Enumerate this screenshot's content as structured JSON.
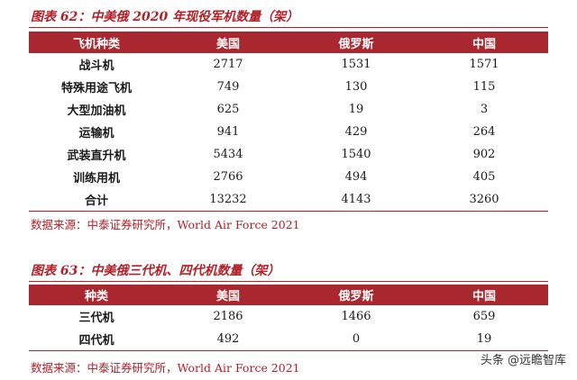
{
  "table62": {
    "title": "图表 62：中美俄 2020 年现役军机数量（架）",
    "headers": [
      "飞机种类",
      "美国",
      "俄罗斯",
      "中国"
    ],
    "rows": [
      [
        "战斗机",
        "2717",
        "1531",
        "1571"
      ],
      [
        "特殊用途飞机",
        "749",
        "130",
        "115"
      ],
      [
        "大型加油机",
        "625",
        "19",
        "3"
      ],
      [
        "运输机",
        "941",
        "429",
        "264"
      ],
      [
        "武装直升机",
        "5434",
        "1540",
        "902"
      ],
      [
        "训练用机",
        "2766",
        "494",
        "405"
      ],
      [
        "合计",
        "13232",
        "4143",
        "3260"
      ]
    ],
    "source": "数据来源：中泰证券研究所，World Air Force 2021"
  },
  "table63": {
    "title": "图表 63：中美俄三代机、四代机数量（架）",
    "headers": [
      "种类",
      "美国",
      "俄罗斯",
      "中国"
    ],
    "rows": [
      [
        "三代机",
        "2186",
        "1466",
        "659"
      ],
      [
        "四代机",
        "492",
        "0",
        "19"
      ]
    ],
    "source": "数据来源：中泰证券研究所，World Air Force 2021"
  },
  "watermark": {
    "text": "头条 @远瞻智库"
  },
  "colors": {
    "accent": "#b22028",
    "header_bg": "#a9282f"
  }
}
